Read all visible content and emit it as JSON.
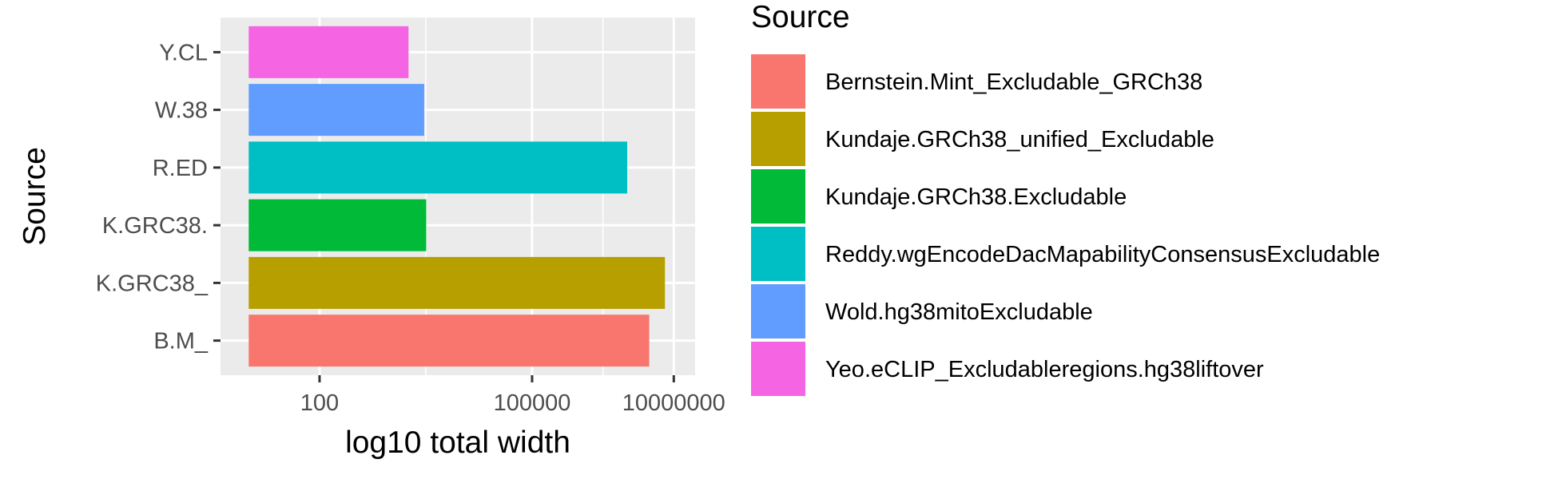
{
  "chart_data": {
    "type": "bar",
    "orientation": "horizontal",
    "xlabel": "log10 total width",
    "ylabel": "Source",
    "x_scale": "log10",
    "xlim": [
      4,
      20000000
    ],
    "x_ticks": [
      {
        "value": 100,
        "label": "100"
      },
      {
        "value": 100000,
        "label": "100000"
      },
      {
        "value": 10000000,
        "label": "10000000"
      }
    ],
    "grid": true,
    "categories": [
      "B.M_",
      "K.GRC38_",
      "K.GRC38.",
      "R.ED",
      "W.38",
      "Y.CL"
    ],
    "values": [
      4500000,
      7500000,
      3200,
      2200000,
      3000,
      1800
    ],
    "bar_base": 10,
    "colors": [
      "#F8766D",
      "#B79F00",
      "#00BA38",
      "#00BFC4",
      "#619CFF",
      "#F564E3"
    ],
    "legend": {
      "title": "Source",
      "position": "right",
      "entries": [
        {
          "label": "Bernstein.Mint_Excludable_GRCh38",
          "color": "#F8766D"
        },
        {
          "label": "Kundaje.GRCh38_unified_Excludable",
          "color": "#B79F00"
        },
        {
          "label": "Kundaje.GRCh38.Excludable",
          "color": "#00BA38"
        },
        {
          "label": "Reddy.wgEncodeDacMapabilityConsensusExcludable",
          "color": "#00BFC4"
        },
        {
          "label": "Wold.hg38mitoExcludable",
          "color": "#619CFF"
        },
        {
          "label": "Yeo.eCLIP_Excludableregions.hg38liftover",
          "color": "#F564E3"
        }
      ]
    }
  }
}
